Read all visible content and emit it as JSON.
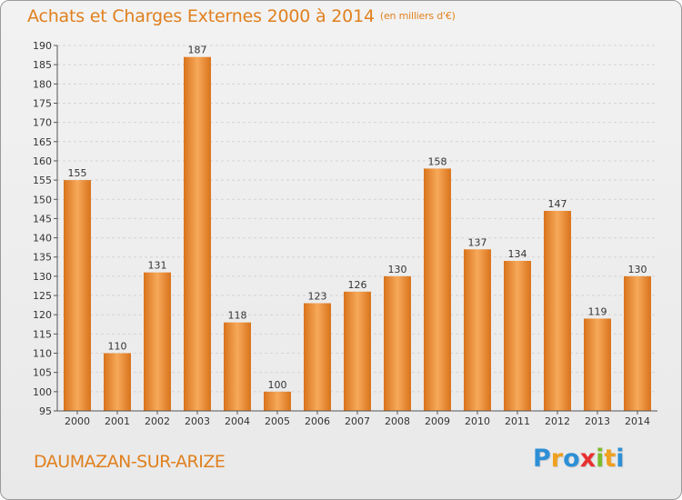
{
  "title": "Achats et Charges Externes 2000 à 2014",
  "subtitle": "(en milliers d'€)",
  "footer_label": "DAUMAZAN-SUR-ARIZE",
  "logo": {
    "letters": [
      "P",
      "r",
      "o",
      "x",
      "i",
      "t",
      "i"
    ],
    "colors": [
      "#2d8fd6",
      "#f0a020",
      "#2d8fd6",
      "#e83030",
      "#7cbc2c",
      "#f0a020",
      "#2d8fd6"
    ]
  },
  "colors": {
    "bar_light": "#f7a95a",
    "bar_dark": "#d9731c",
    "text": "#e0801f",
    "axis_text": "#333333"
  },
  "chart_data": {
    "type": "bar",
    "title": "Achats et Charges Externes 2000 à 2014",
    "subtitle": "(en milliers d'€)",
    "categories": [
      "2000",
      "2001",
      "2002",
      "2003",
      "2004",
      "2005",
      "2006",
      "2007",
      "2008",
      "2009",
      "2010",
      "2011",
      "2012",
      "2013",
      "2014"
    ],
    "values": [
      155,
      110,
      131,
      187,
      118,
      100,
      123,
      126,
      130,
      158,
      137,
      134,
      147,
      119,
      130
    ],
    "ylim": [
      95,
      190
    ],
    "yticks": [
      95,
      100,
      105,
      110,
      115,
      120,
      125,
      130,
      135,
      140,
      145,
      150,
      155,
      160,
      165,
      170,
      175,
      180,
      185,
      190
    ],
    "grid": true
  }
}
